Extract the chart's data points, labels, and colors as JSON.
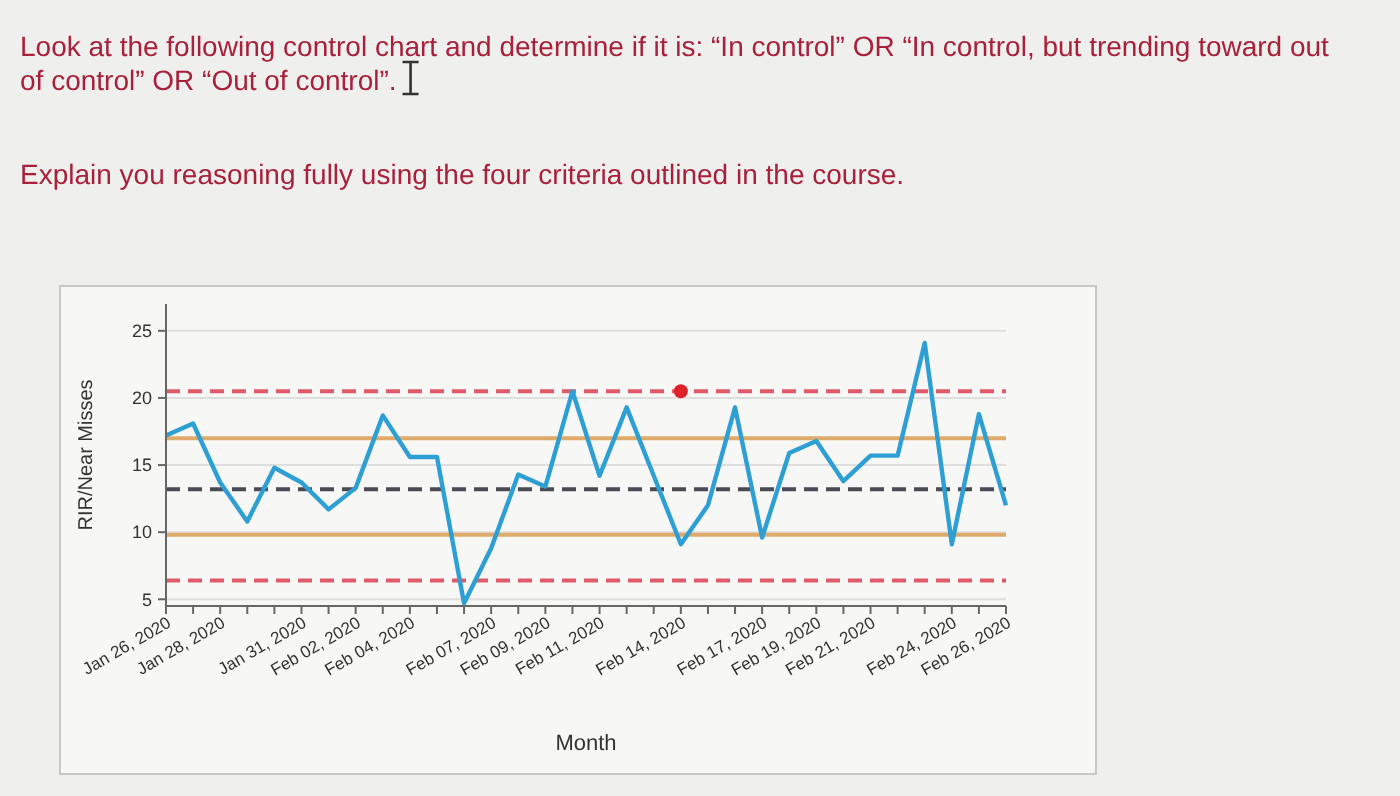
{
  "chart_data": {
    "type": "line",
    "title": "Look at the following control chart and determine if it is: “In control” OR “In control, but trending toward out of control” OR “Out of control”.",
    "subtitle": "Explain you reasoning fully using the four criteria outlined in the course.",
    "xlabel": "Month",
    "ylabel": "RIR/Near Misses",
    "categories": [
      "Jan 26, 2020",
      null,
      "Jan 28, 2020",
      null,
      null,
      "Jan 31, 2020",
      null,
      "Feb 02, 2020",
      null,
      "Feb 04, 2020",
      null,
      null,
      "Feb 07, 2020",
      null,
      "Feb 09, 2020",
      null,
      "Feb 11, 2020",
      null,
      null,
      "Feb 14, 2020",
      null,
      null,
      "Feb 17, 2020",
      null,
      "Feb 19, 2020",
      null,
      "Feb 21, 2020",
      null,
      null,
      "Feb 24, 2020",
      null,
      "Feb 26, 2020"
    ],
    "series": [
      {
        "color": "#2e9fd4",
        "values": [
          17.2,
          18.1,
          13.7,
          10.8,
          14.8,
          13.7,
          11.7,
          13.3,
          18.7,
          15.6,
          15.6,
          4.7,
          8.8,
          14.3,
          13.4,
          20.5,
          14.2,
          19.3,
          14.2,
          9.1,
          12.0,
          19.3,
          9.6,
          15.9,
          16.8,
          13.8,
          15.7,
          15.7,
          24.1,
          9.1,
          18.8,
          12.0
        ]
      },
      {
        "type": "scatter",
        "marker": "circle",
        "color": "#e0202a",
        "values": [
          null,
          null,
          null,
          null,
          null,
          null,
          null,
          null,
          null,
          null,
          null,
          null,
          null,
          null,
          null,
          null,
          null,
          null,
          null,
          20.5,
          null,
          null,
          null,
          null,
          null,
          null,
          null,
          null,
          null,
          null,
          null,
          null
        ]
      }
    ],
    "ylim": [
      4.5,
      27
    ],
    "yticks": [
      5,
      10,
      15,
      20,
      25
    ],
    "grid": "y",
    "marker": "none",
    "line_style": "solid",
    "ref_lines": [
      {
        "axis": "y",
        "value": 20.5,
        "color": "#e05a6a",
        "line_style": "dashed"
      },
      {
        "axis": "y",
        "value": 17,
        "color": "#e0aa6a",
        "line_style": "solid"
      },
      {
        "axis": "y",
        "value": 13.2,
        "color": "#4a4a55",
        "line_style": "dashed"
      },
      {
        "axis": "y",
        "value": 9.8,
        "color": "#e0aa6a",
        "line_style": "solid"
      },
      {
        "axis": "y",
        "value": 6.4,
        "color": "#e05a6a",
        "line_style": "dashed"
      }
    ]
  }
}
